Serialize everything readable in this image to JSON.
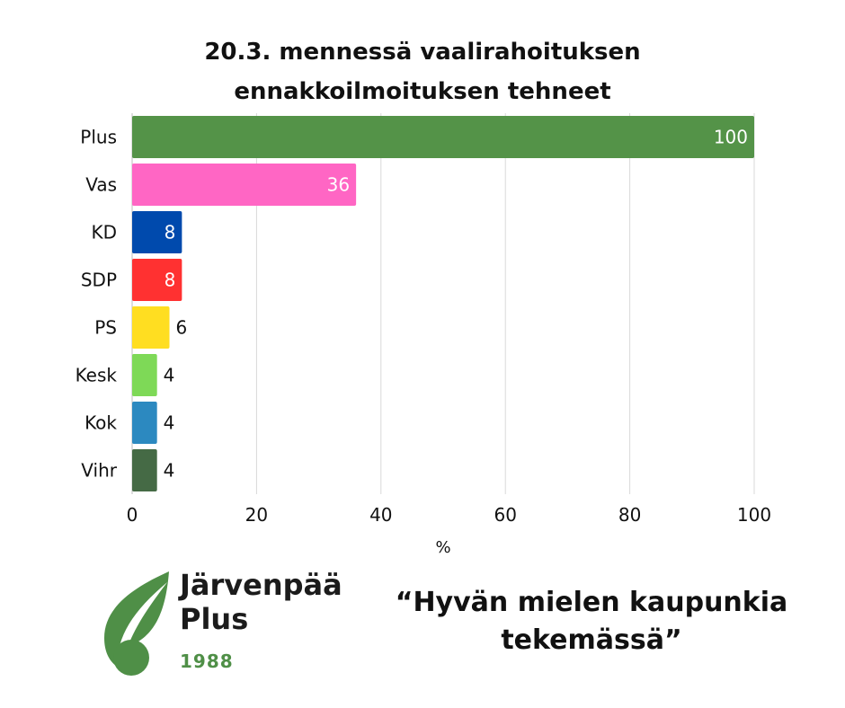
{
  "chart_data": {
    "type": "bar",
    "orientation": "horizontal",
    "title_lines": [
      "20.3. mennessä vaalirahoituksen",
      "ennakkoilmoituksen tehneet"
    ],
    "categories": [
      "Plus",
      "Vas",
      "KD",
      "SDP",
      "PS",
      "Kesk",
      "Kok",
      "Vihr"
    ],
    "values": [
      100,
      36,
      8,
      8,
      6,
      4,
      4,
      4
    ],
    "colors": [
      "#549348",
      "#ff66c4",
      "#004aad",
      "#ff3131",
      "#ffde21",
      "#7ed957",
      "#2c89c0",
      "#456a45"
    ],
    "data_labels": [
      "100",
      "36",
      "8",
      "8",
      "6",
      "4",
      "4",
      "4"
    ],
    "xlabel": "%",
    "ylabel": "",
    "xlim": [
      0,
      100
    ],
    "xticks": [
      0,
      20,
      40,
      60,
      80,
      100
    ],
    "grid": true,
    "legend": "none"
  },
  "footer": {
    "brand_lines": [
      "Järvenpää",
      "Plus"
    ],
    "brand_year": "1988",
    "slogan_lines": [
      "“Hyvän mielen kaupunkia",
      "tekemässä”"
    ],
    "logo_icon": "leaf-icon",
    "brand_color": "#4f8f47"
  }
}
